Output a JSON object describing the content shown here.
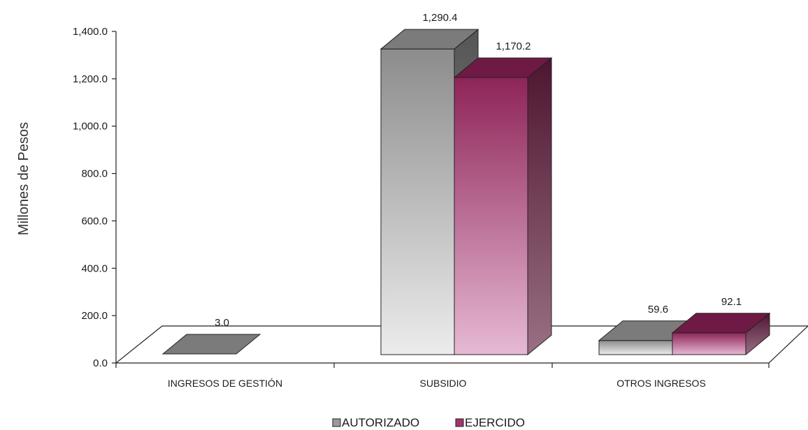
{
  "chart_data": {
    "type": "bar",
    "categories": [
      "INGRESOS DE GESTIÓN",
      "SUBSIDIO",
      "OTROS INGRESOS"
    ],
    "series": [
      {
        "name": "AUTORIZADO",
        "values": [
          3.0,
          1290.4,
          59.6
        ],
        "labels": [
          "3.0",
          "1,290.4",
          "59.6"
        ]
      },
      {
        "name": "EJERCIDO",
        "values": [
          0,
          1170.2,
          92.1
        ],
        "labels": [
          "",
          "1,170.2",
          "92.1"
        ]
      }
    ],
    "ylabel": "Millones de Pesos",
    "xlabel": "",
    "ylim": [
      0,
      1400
    ],
    "yticks": [
      "0.0",
      "200.0",
      "400.0",
      "600.0",
      "800.0",
      "1,000.0",
      "1,200.0",
      "1,400.0"
    ],
    "grid": false,
    "legend_position": "bottom",
    "colors": {
      "autorizado_front_top": "#8c8c8c",
      "autorizado_front_bottom": "#ececec",
      "autorizado_top": "#7a7a7a",
      "autorizado_side": "#5e5e5e",
      "ejercido_front_top": "#8e2458",
      "ejercido_front_bottom": "#e6b9d3",
      "ejercido_top": "#6b1840",
      "ejercido_side": "#5a1a38"
    }
  }
}
